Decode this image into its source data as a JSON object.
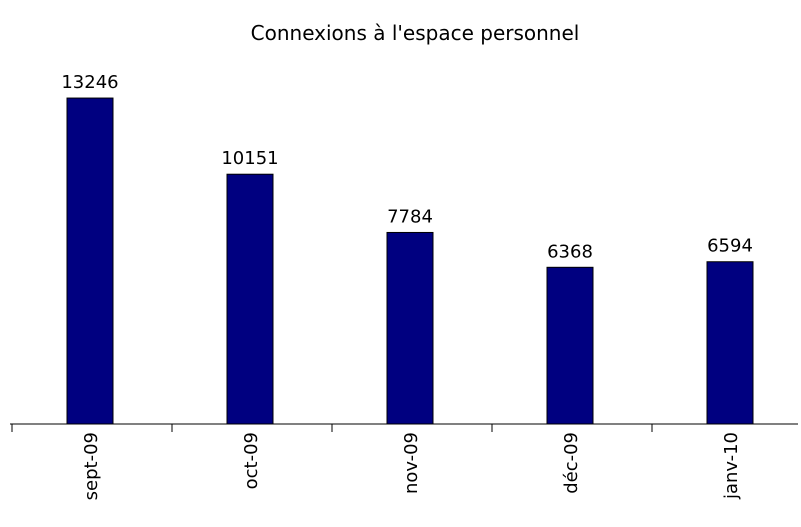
{
  "chart_data": {
    "type": "bar",
    "title": "Connexions à l'espace personnel",
    "categories": [
      "sept-09",
      "oct-09",
      "nov-09",
      "déc-09",
      "janv-10"
    ],
    "values": [
      13246,
      10151,
      7784,
      6368,
      6594
    ],
    "color": "#000080",
    "ylim": [
      0,
      14000
    ],
    "grid": false
  }
}
